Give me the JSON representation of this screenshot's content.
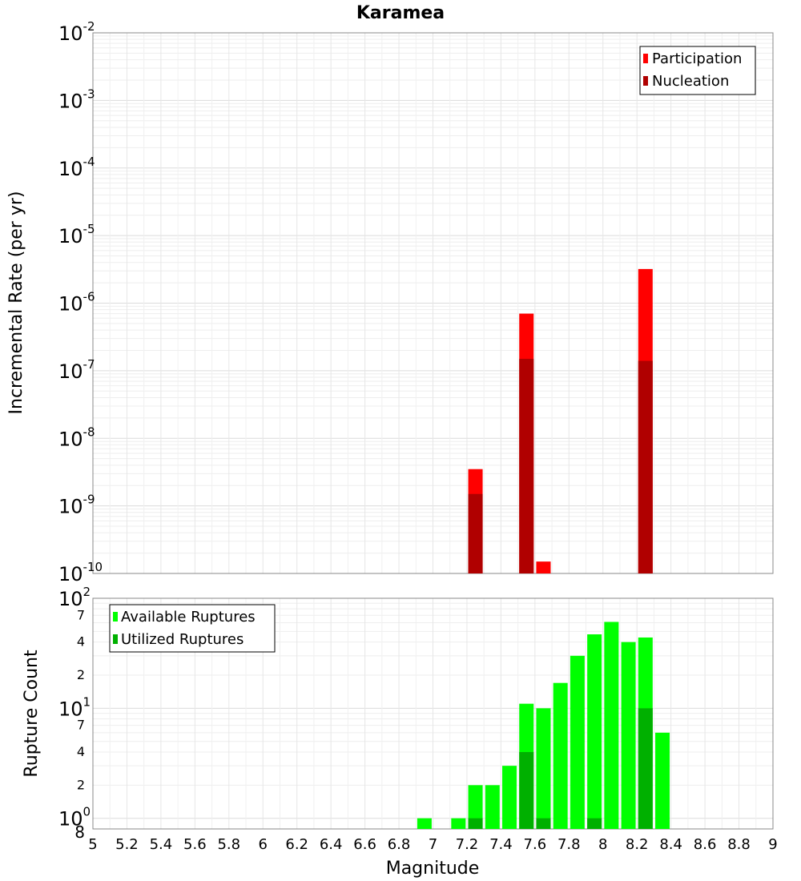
{
  "chart_data": [
    {
      "type": "bar",
      "title": "Karamea",
      "ylabel": "Incremental Rate (per yr)",
      "yscale": "log",
      "ylim": [
        1e-10,
        0.01
      ],
      "xlim": [
        5,
        9
      ],
      "grid": true,
      "legend_position": "top-right",
      "y_major_ticks": [
        {
          "base": "10",
          "exp": "-10"
        },
        {
          "base": "10",
          "exp": "-9"
        },
        {
          "base": "10",
          "exp": "-8"
        },
        {
          "base": "10",
          "exp": "-7"
        },
        {
          "base": "10",
          "exp": "-6"
        },
        {
          "base": "10",
          "exp": "-5"
        },
        {
          "base": "10",
          "exp": "-4"
        },
        {
          "base": "10",
          "exp": "-3"
        },
        {
          "base": "10",
          "exp": "-2"
        }
      ],
      "series": [
        {
          "name": "Participation",
          "color": "#ff0000",
          "points": [
            {
              "x": 7.25,
              "y": 3.5e-09
            },
            {
              "x": 7.55,
              "y": 7e-07
            },
            {
              "x": 7.65,
              "y": 1.5e-10
            },
            {
              "x": 8.25,
              "y": 3.2e-06
            }
          ]
        },
        {
          "name": "Nucleation",
          "color": "#b00000",
          "points": [
            {
              "x": 7.25,
              "y": 1.5e-09
            },
            {
              "x": 7.55,
              "y": 1.5e-07
            },
            {
              "x": 8.25,
              "y": 1.4e-07
            }
          ]
        }
      ]
    },
    {
      "type": "bar",
      "ylabel": "Rupture Count",
      "xlabel": "Magnitude",
      "yscale": "log",
      "ylim": [
        0.8,
        100
      ],
      "xlim": [
        5,
        9
      ],
      "grid": true,
      "legend_position": "top-left",
      "x_ticks": [
        "5",
        "5.2",
        "5.4",
        "5.6",
        "5.8",
        "6",
        "6.2",
        "6.4",
        "6.6",
        "6.8",
        "7",
        "7.2",
        "7.4",
        "7.6",
        "7.8",
        "8",
        "8.2",
        "8.4",
        "8.6",
        "8.8",
        "9"
      ],
      "y_major_ticks": [
        {
          "value": 1,
          "base": "10",
          "exp": "0"
        },
        {
          "value": 10,
          "base": "10",
          "exp": "1"
        },
        {
          "value": 100,
          "base": "10",
          "exp": "2"
        }
      ],
      "y_minor_ticks": [
        {
          "value": 0.8,
          "label": "8"
        },
        {
          "value": 2,
          "label": "2"
        },
        {
          "value": 4,
          "label": "4"
        },
        {
          "value": 7,
          "label": "7"
        },
        {
          "value": 20,
          "label": "2"
        },
        {
          "value": 40,
          "label": "4"
        },
        {
          "value": 70,
          "label": "7"
        }
      ],
      "series": [
        {
          "name": "Available Ruptures",
          "color": "#00ff00",
          "points": [
            {
              "x": 6.95,
              "y": 1
            },
            {
              "x": 7.15,
              "y": 1
            },
            {
              "x": 7.25,
              "y": 2
            },
            {
              "x": 7.35,
              "y": 2
            },
            {
              "x": 7.45,
              "y": 3
            },
            {
              "x": 7.55,
              "y": 11
            },
            {
              "x": 7.65,
              "y": 10
            },
            {
              "x": 7.75,
              "y": 17
            },
            {
              "x": 7.85,
              "y": 30
            },
            {
              "x": 7.95,
              "y": 47
            },
            {
              "x": 8.05,
              "y": 61
            },
            {
              "x": 8.15,
              "y": 40
            },
            {
              "x": 8.25,
              "y": 44
            },
            {
              "x": 8.35,
              "y": 6
            }
          ]
        },
        {
          "name": "Utilized Ruptures",
          "color": "#00b000",
          "points": [
            {
              "x": 7.25,
              "y": 1
            },
            {
              "x": 7.55,
              "y": 4
            },
            {
              "x": 7.65,
              "y": 1
            },
            {
              "x": 7.95,
              "y": 1
            },
            {
              "x": 8.25,
              "y": 10
            }
          ]
        }
      ]
    }
  ]
}
